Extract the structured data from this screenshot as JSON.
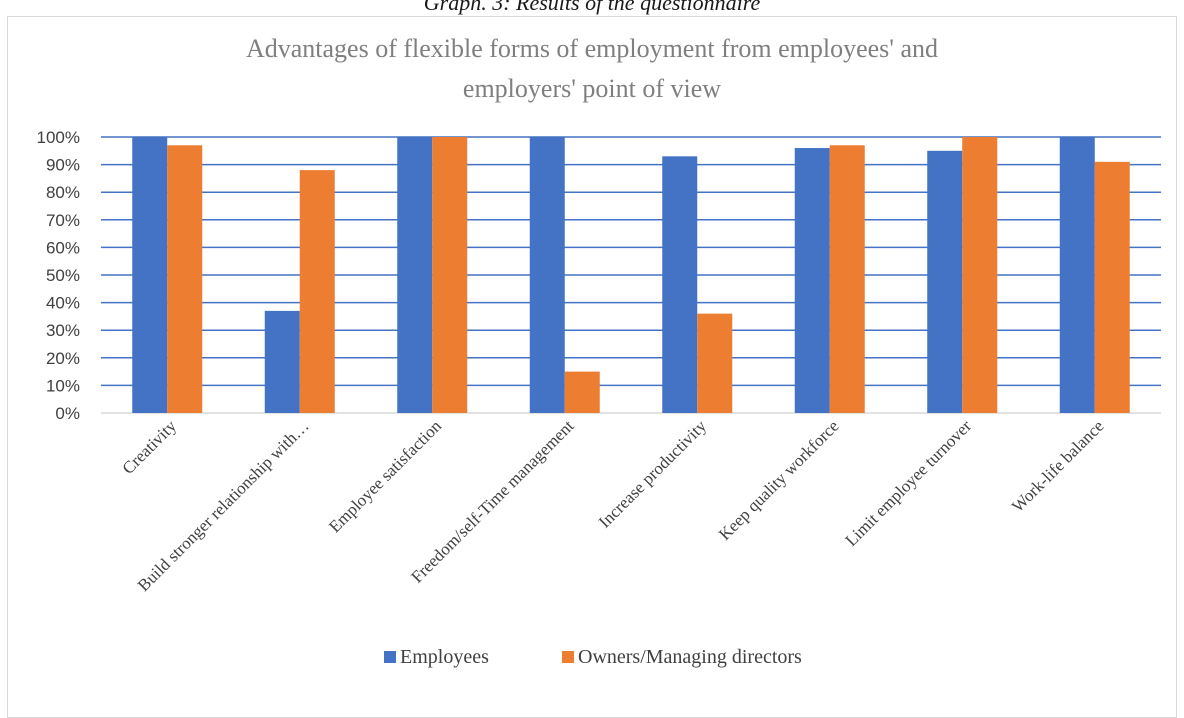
{
  "figure": {
    "caption": "Graph. 3: Results of the questionnaire"
  },
  "chart_data": {
    "type": "bar",
    "title_lines": [
      "Advantages of flexible forms of employment from employees' and",
      "employers' point of view"
    ],
    "categories": [
      "Creativity",
      "Build stronger relationship with…",
      "Employee satisfaction",
      "Freedom/self-Time management",
      "Increase productivity",
      "Keep quality workforce",
      "Limit employee turnover",
      "Work-life balance"
    ],
    "series": [
      {
        "name": "Employees",
        "color": "#4472c4",
        "values": [
          100,
          37,
          100,
          100,
          93,
          96,
          95,
          100
        ]
      },
      {
        "name": "Owners/Managing directors",
        "color": "#ed7d31",
        "values": [
          97,
          88,
          100,
          15,
          36,
          97,
          100,
          91
        ]
      }
    ],
    "ylim": [
      0,
      100
    ],
    "y_ticks": [
      "0%",
      "10%",
      "20%",
      "30%",
      "40%",
      "50%",
      "60%",
      "70%",
      "80%",
      "90%",
      "100%"
    ],
    "xlabel": "",
    "ylabel": "",
    "grid": true,
    "gridline_color": "#4472c4",
    "legend_position": "bottom"
  }
}
